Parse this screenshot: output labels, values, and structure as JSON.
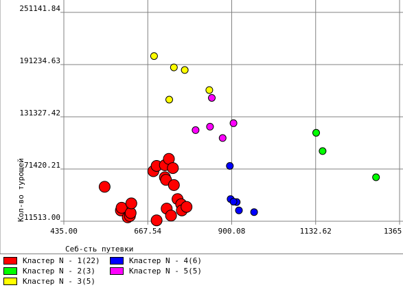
{
  "chart_data": {
    "type": "scatter",
    "xlabel": "Себ-сть путевки",
    "ylabel": "Кол-во турощей",
    "xlim": [
      435.0,
      1365.16
    ],
    "ylim": [
      11513.0,
      251141.84
    ],
    "x_ticks": [
      "435.00",
      "667.54",
      "900.08",
      "1132.62",
      "1365.16"
    ],
    "y_ticks": [
      "11513.00",
      "71420.21",
      "131327.42",
      "191234.63",
      "251141.84"
    ],
    "grid": true,
    "legend": "bottom",
    "series": [
      {
        "name": "Кластер N - 1(22)",
        "color": "#ff0000",
        "points": [
          [
            548,
            51000
          ],
          [
            593,
            24000
          ],
          [
            595,
            27000
          ],
          [
            612,
            16000
          ],
          [
            618,
            17500
          ],
          [
            620,
            21000
          ],
          [
            622,
            32000
          ],
          [
            683,
            69000
          ],
          [
            692,
            75000
          ],
          [
            715,
            75800
          ],
          [
            715,
            62000
          ],
          [
            718,
            59000
          ],
          [
            720,
            26000
          ],
          [
            726,
            83000
          ],
          [
            737,
            72500
          ],
          [
            732,
            18000
          ],
          [
            740,
            53000
          ],
          [
            750,
            37000
          ],
          [
            760,
            31000
          ],
          [
            762,
            24000
          ],
          [
            775,
            28000
          ],
          [
            692,
            12500
          ]
        ]
      },
      {
        "name": "Кластер N - 2(3)",
        "color": "#00ff00",
        "points": [
          [
            1134,
            113000
          ],
          [
            1152,
            92000
          ],
          [
            1300,
            62000
          ]
        ]
      },
      {
        "name": "Кластер N - 3(5)",
        "color": "#ffff00",
        "points": [
          [
            685,
            201000
          ],
          [
            740,
            188000
          ],
          [
            770,
            185000
          ],
          [
            838,
            162000
          ],
          [
            727,
            151000
          ]
        ]
      },
      {
        "name": "Кластер N - 4(6)",
        "color": "#0000ff",
        "points": [
          [
            895,
            75000
          ],
          [
            897,
            37000
          ],
          [
            914,
            33500
          ],
          [
            920,
            24000
          ],
          [
            962,
            22000
          ],
          [
            905,
            34000
          ]
        ]
      },
      {
        "name": "Кластер N - 5(5)",
        "color": "#ff00ff",
        "points": [
          [
            845,
            153000
          ],
          [
            905,
            124000
          ],
          [
            840,
            120000
          ],
          [
            800,
            116000
          ],
          [
            875,
            107000
          ]
        ]
      }
    ]
  }
}
